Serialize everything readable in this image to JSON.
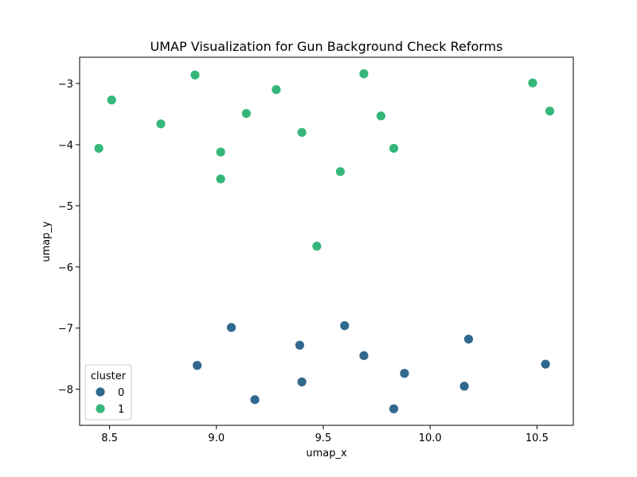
{
  "chart_data": {
    "type": "scatter",
    "title": "UMAP Visualization for Gun Background Check Reforms",
    "xlabel": "umap_x",
    "ylabel": "umap_y",
    "xlim": [
      8.36,
      10.67
    ],
    "ylim": [
      -8.59,
      -2.57
    ],
    "xticks": [
      8.5,
      9.0,
      9.5,
      10.0,
      10.5
    ],
    "xtick_labels": [
      "8.5",
      "9.0",
      "9.5",
      "10.0",
      "10.5"
    ],
    "yticks": [
      -8,
      -7,
      -6,
      -5,
      -4,
      -3
    ],
    "ytick_labels": [
      "−8",
      "−7",
      "−6",
      "−5",
      "−4",
      "−3"
    ],
    "grid": false,
    "legend": {
      "title": "cluster",
      "placement": "lower-left",
      "entries": [
        "0",
        "1"
      ]
    },
    "series": [
      {
        "name": "0",
        "color": "#31688e",
        "points": [
          [
            9.07,
            -6.99
          ],
          [
            9.6,
            -6.96
          ],
          [
            10.18,
            -7.18
          ],
          [
            9.39,
            -7.28
          ],
          [
            9.69,
            -7.45
          ],
          [
            8.91,
            -7.61
          ],
          [
            10.54,
            -7.59
          ],
          [
            9.88,
            -7.74
          ],
          [
            9.4,
            -7.88
          ],
          [
            10.16,
            -7.95
          ],
          [
            9.18,
            -8.17
          ],
          [
            9.83,
            -8.32
          ]
        ]
      },
      {
        "name": "1",
        "color": "#35b779",
        "points": [
          [
            8.9,
            -2.86
          ],
          [
            9.69,
            -2.84
          ],
          [
            10.48,
            -2.99
          ],
          [
            8.51,
            -3.27
          ],
          [
            9.28,
            -3.1
          ],
          [
            10.56,
            -3.45
          ],
          [
            9.14,
            -3.49
          ],
          [
            9.77,
            -3.53
          ],
          [
            8.74,
            -3.66
          ],
          [
            9.4,
            -3.8
          ],
          [
            8.45,
            -4.06
          ],
          [
            9.02,
            -4.12
          ],
          [
            9.83,
            -4.06
          ],
          [
            9.58,
            -4.44
          ],
          [
            9.02,
            -4.56
          ],
          [
            9.47,
            -5.66
          ]
        ]
      }
    ]
  }
}
